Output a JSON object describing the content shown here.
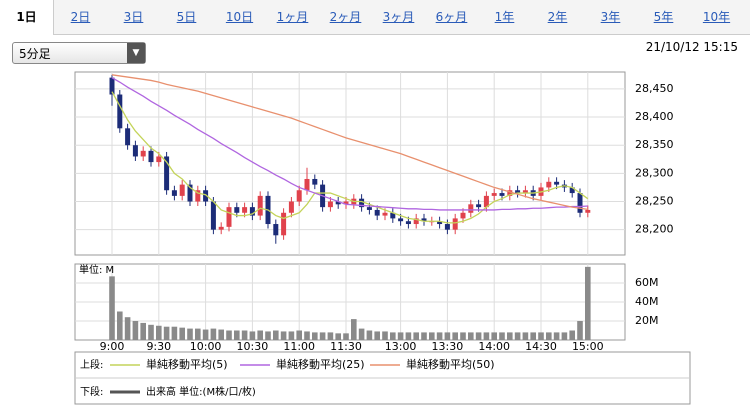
{
  "tabs": [
    "1日",
    "2日",
    "3日",
    "5日",
    "10日",
    "1ヶ月",
    "2ヶ月",
    "3ヶ月",
    "6ヶ月",
    "1年",
    "2年",
    "3年",
    "5年",
    "10年"
  ],
  "interval": "5分足",
  "timestamp": "21/10/12 15:15",
  "chart_data": [
    {
      "type": "candlestick",
      "panel_label": "上段:",
      "categories": [
        "9:00",
        null,
        null,
        null,
        null,
        null,
        "9:30",
        null,
        null,
        null,
        null,
        null,
        "10:00",
        null,
        null,
        null,
        null,
        null,
        "10:30",
        null,
        null,
        null,
        null,
        null,
        "11:00",
        null,
        null,
        null,
        null,
        null,
        "11:30",
        null,
        null,
        null,
        null,
        null,
        null,
        "13:00",
        null,
        null,
        null,
        null,
        null,
        "13:30",
        null,
        null,
        null,
        null,
        null,
        "14:00",
        null,
        null,
        null,
        null,
        null,
        "14:30",
        null,
        null,
        null,
        null,
        null,
        "15:00"
      ],
      "open": [
        28470,
        28440,
        28380,
        28350,
        28330,
        28340,
        28320,
        28330,
        28270,
        28260,
        28280,
        28250,
        28270,
        28250,
        28200,
        28205,
        28240,
        28230,
        28240,
        28225,
        28260,
        28210,
        28190,
        28230,
        28250,
        28270,
        28290,
        28280,
        28240,
        28250,
        28245,
        28245,
        28255,
        28240,
        28235,
        28225,
        28230,
        28220,
        28215,
        28210,
        28220,
        28215,
        28215,
        28210,
        28200,
        28220,
        28230,
        28245,
        28240,
        28260,
        28265,
        28260,
        28270,
        28265,
        28270,
        28260,
        28275,
        28285,
        28280,
        28275,
        28265,
        28230
      ],
      "high": [
        28475,
        28448,
        28388,
        28358,
        28348,
        28348,
        28338,
        28338,
        28278,
        28288,
        28288,
        28278,
        28278,
        28258,
        28213,
        28248,
        28248,
        28248,
        28248,
        28268,
        28268,
        28218,
        28238,
        28258,
        28278,
        28310,
        28298,
        28288,
        28258,
        28258,
        28258,
        28263,
        28263,
        28248,
        28243,
        28238,
        28238,
        28228,
        28223,
        28228,
        28228,
        28223,
        28223,
        28218,
        28228,
        28238,
        28253,
        28253,
        28268,
        28273,
        28273,
        28278,
        28278,
        28278,
        28278,
        28283,
        28293,
        28293,
        28288,
        28283,
        28273,
        28243
      ],
      "low": [
        28420,
        28372,
        28342,
        28322,
        28322,
        28312,
        28312,
        28262,
        28252,
        28252,
        28242,
        28242,
        28242,
        28192,
        28192,
        28197,
        28222,
        28222,
        28217,
        28217,
        28202,
        28175,
        28182,
        28222,
        28242,
        28262,
        28272,
        28232,
        28232,
        28237,
        28237,
        28237,
        28232,
        28227,
        28217,
        28217,
        28212,
        28207,
        28202,
        28202,
        28207,
        28207,
        28202,
        28192,
        28192,
        28212,
        28222,
        28232,
        28232,
        28252,
        28252,
        28252,
        28257,
        28257,
        28252,
        28252,
        28267,
        28272,
        28267,
        28257,
        28222,
        28222
      ],
      "close": [
        28440,
        28380,
        28350,
        28330,
        28340,
        28320,
        28330,
        28270,
        28260,
        28280,
        28250,
        28270,
        28250,
        28200,
        28205,
        28240,
        28230,
        28240,
        28225,
        28260,
        28210,
        28190,
        28230,
        28250,
        28270,
        28290,
        28280,
        28240,
        28250,
        28245,
        28250,
        28255,
        28240,
        28235,
        28225,
        28230,
        28220,
        28215,
        28210,
        28220,
        28215,
        28215,
        28210,
        28200,
        28220,
        28230,
        28245,
        28240,
        28260,
        28265,
        28260,
        28270,
        28265,
        28270,
        28260,
        28275,
        28285,
        28280,
        28275,
        28265,
        28230,
        28235
      ],
      "up_color": "#e0424c",
      "down_color": "#1c2c78",
      "series": [
        {
          "name": "単純移動平均(5)",
          "color": "#c4d45a",
          "values": [
            28445,
            28420,
            28395,
            28375,
            28360,
            28345,
            28335,
            28320,
            28300,
            28290,
            28275,
            28265,
            28262,
            28250,
            28235,
            28230,
            28225,
            28225,
            28228,
            28238,
            28235,
            28225,
            28220,
            28225,
            28230,
            28245,
            28265,
            28265,
            28265,
            28260,
            28255,
            28250,
            28250,
            28245,
            28240,
            28235,
            28230,
            28225,
            28220,
            28218,
            28215,
            28215,
            28215,
            28212,
            28212,
            28215,
            28220,
            28228,
            28240,
            28250,
            28255,
            28262,
            28265,
            28265,
            28265,
            28267,
            28270,
            28275,
            28278,
            28275,
            28265,
            28255
          ]
        },
        {
          "name": "単純移動平均(25)",
          "color": "#b066e0",
          "values": [
            28470,
            28462,
            28453,
            28445,
            28437,
            28428,
            28420,
            28412,
            28403,
            28395,
            28387,
            28378,
            28370,
            28362,
            28353,
            28345,
            28337,
            28328,
            28320,
            28312,
            28305,
            28297,
            28290,
            28282,
            28275,
            28270,
            28265,
            28260,
            28255,
            28250,
            28245,
            28244,
            28243,
            28242,
            28241,
            28240,
            28239,
            28238,
            28237,
            28237,
            28236,
            28236,
            28235,
            28235,
            28235,
            28235,
            28235,
            28235,
            28235,
            28235,
            28236,
            28236,
            28237,
            28237,
            28238,
            28238,
            28239,
            28240,
            28240,
            28241,
            28241,
            28242
          ]
        },
        {
          "name": "単純移動平均(50)",
          "color": "#e8906e",
          "values": [
            28475,
            28473,
            28471,
            28469,
            28467,
            28465,
            28462,
            28458,
            28455,
            28452,
            28449,
            28446,
            28442,
            28438,
            28434,
            28430,
            28426,
            28422,
            28418,
            28414,
            28410,
            28406,
            28402,
            28398,
            28393,
            28388,
            28383,
            28378,
            28373,
            28368,
            28363,
            28359,
            28355,
            28351,
            28347,
            28343,
            28339,
            28335,
            28330,
            28325,
            28320,
            28315,
            28310,
            28305,
            28300,
            28295,
            28290,
            28285,
            28280,
            28275,
            28271,
            28267,
            28263,
            28259,
            28255,
            28252,
            28249,
            28246,
            28243,
            28240,
            28238,
            28236
          ]
        }
      ],
      "ylim": [
        28155,
        28480
      ],
      "yticks": [
        {
          "value": 28200,
          "label": "28,200"
        },
        {
          "value": 28250,
          "label": "28,250"
        },
        {
          "value": 28300,
          "label": "28,300"
        },
        {
          "value": 28350,
          "label": "28,350"
        },
        {
          "value": 28400,
          "label": "28,400"
        },
        {
          "value": 28450,
          "label": "28,450"
        }
      ],
      "grid": true
    },
    {
      "type": "bar",
      "panel_label": "下段:",
      "unit_label": "単位: M",
      "series": [
        {
          "name": "出来高 単位:(M株/口/枚)",
          "color": "#8a8a8a",
          "values": [
            67,
            30,
            24,
            20,
            18,
            16,
            15,
            14,
            14,
            13,
            12,
            12,
            11,
            12,
            11,
            10,
            10,
            10,
            9,
            10,
            9,
            10,
            9,
            9,
            10,
            9,
            8,
            8,
            8,
            7,
            7,
            22,
            12,
            10,
            9,
            9,
            8,
            8,
            8,
            8,
            8,
            8,
            8,
            8,
            8,
            8,
            8,
            8,
            8,
            8,
            8,
            8,
            8,
            8,
            8,
            8,
            8,
            8,
            8,
            10,
            20,
            77
          ]
        }
      ],
      "ylim": [
        0,
        80
      ],
      "yticks": [
        {
          "value": 20,
          "label": "20M"
        },
        {
          "value": 40,
          "label": "40M"
        },
        {
          "value": 60,
          "label": "60M"
        }
      ],
      "grid": true
    }
  ]
}
